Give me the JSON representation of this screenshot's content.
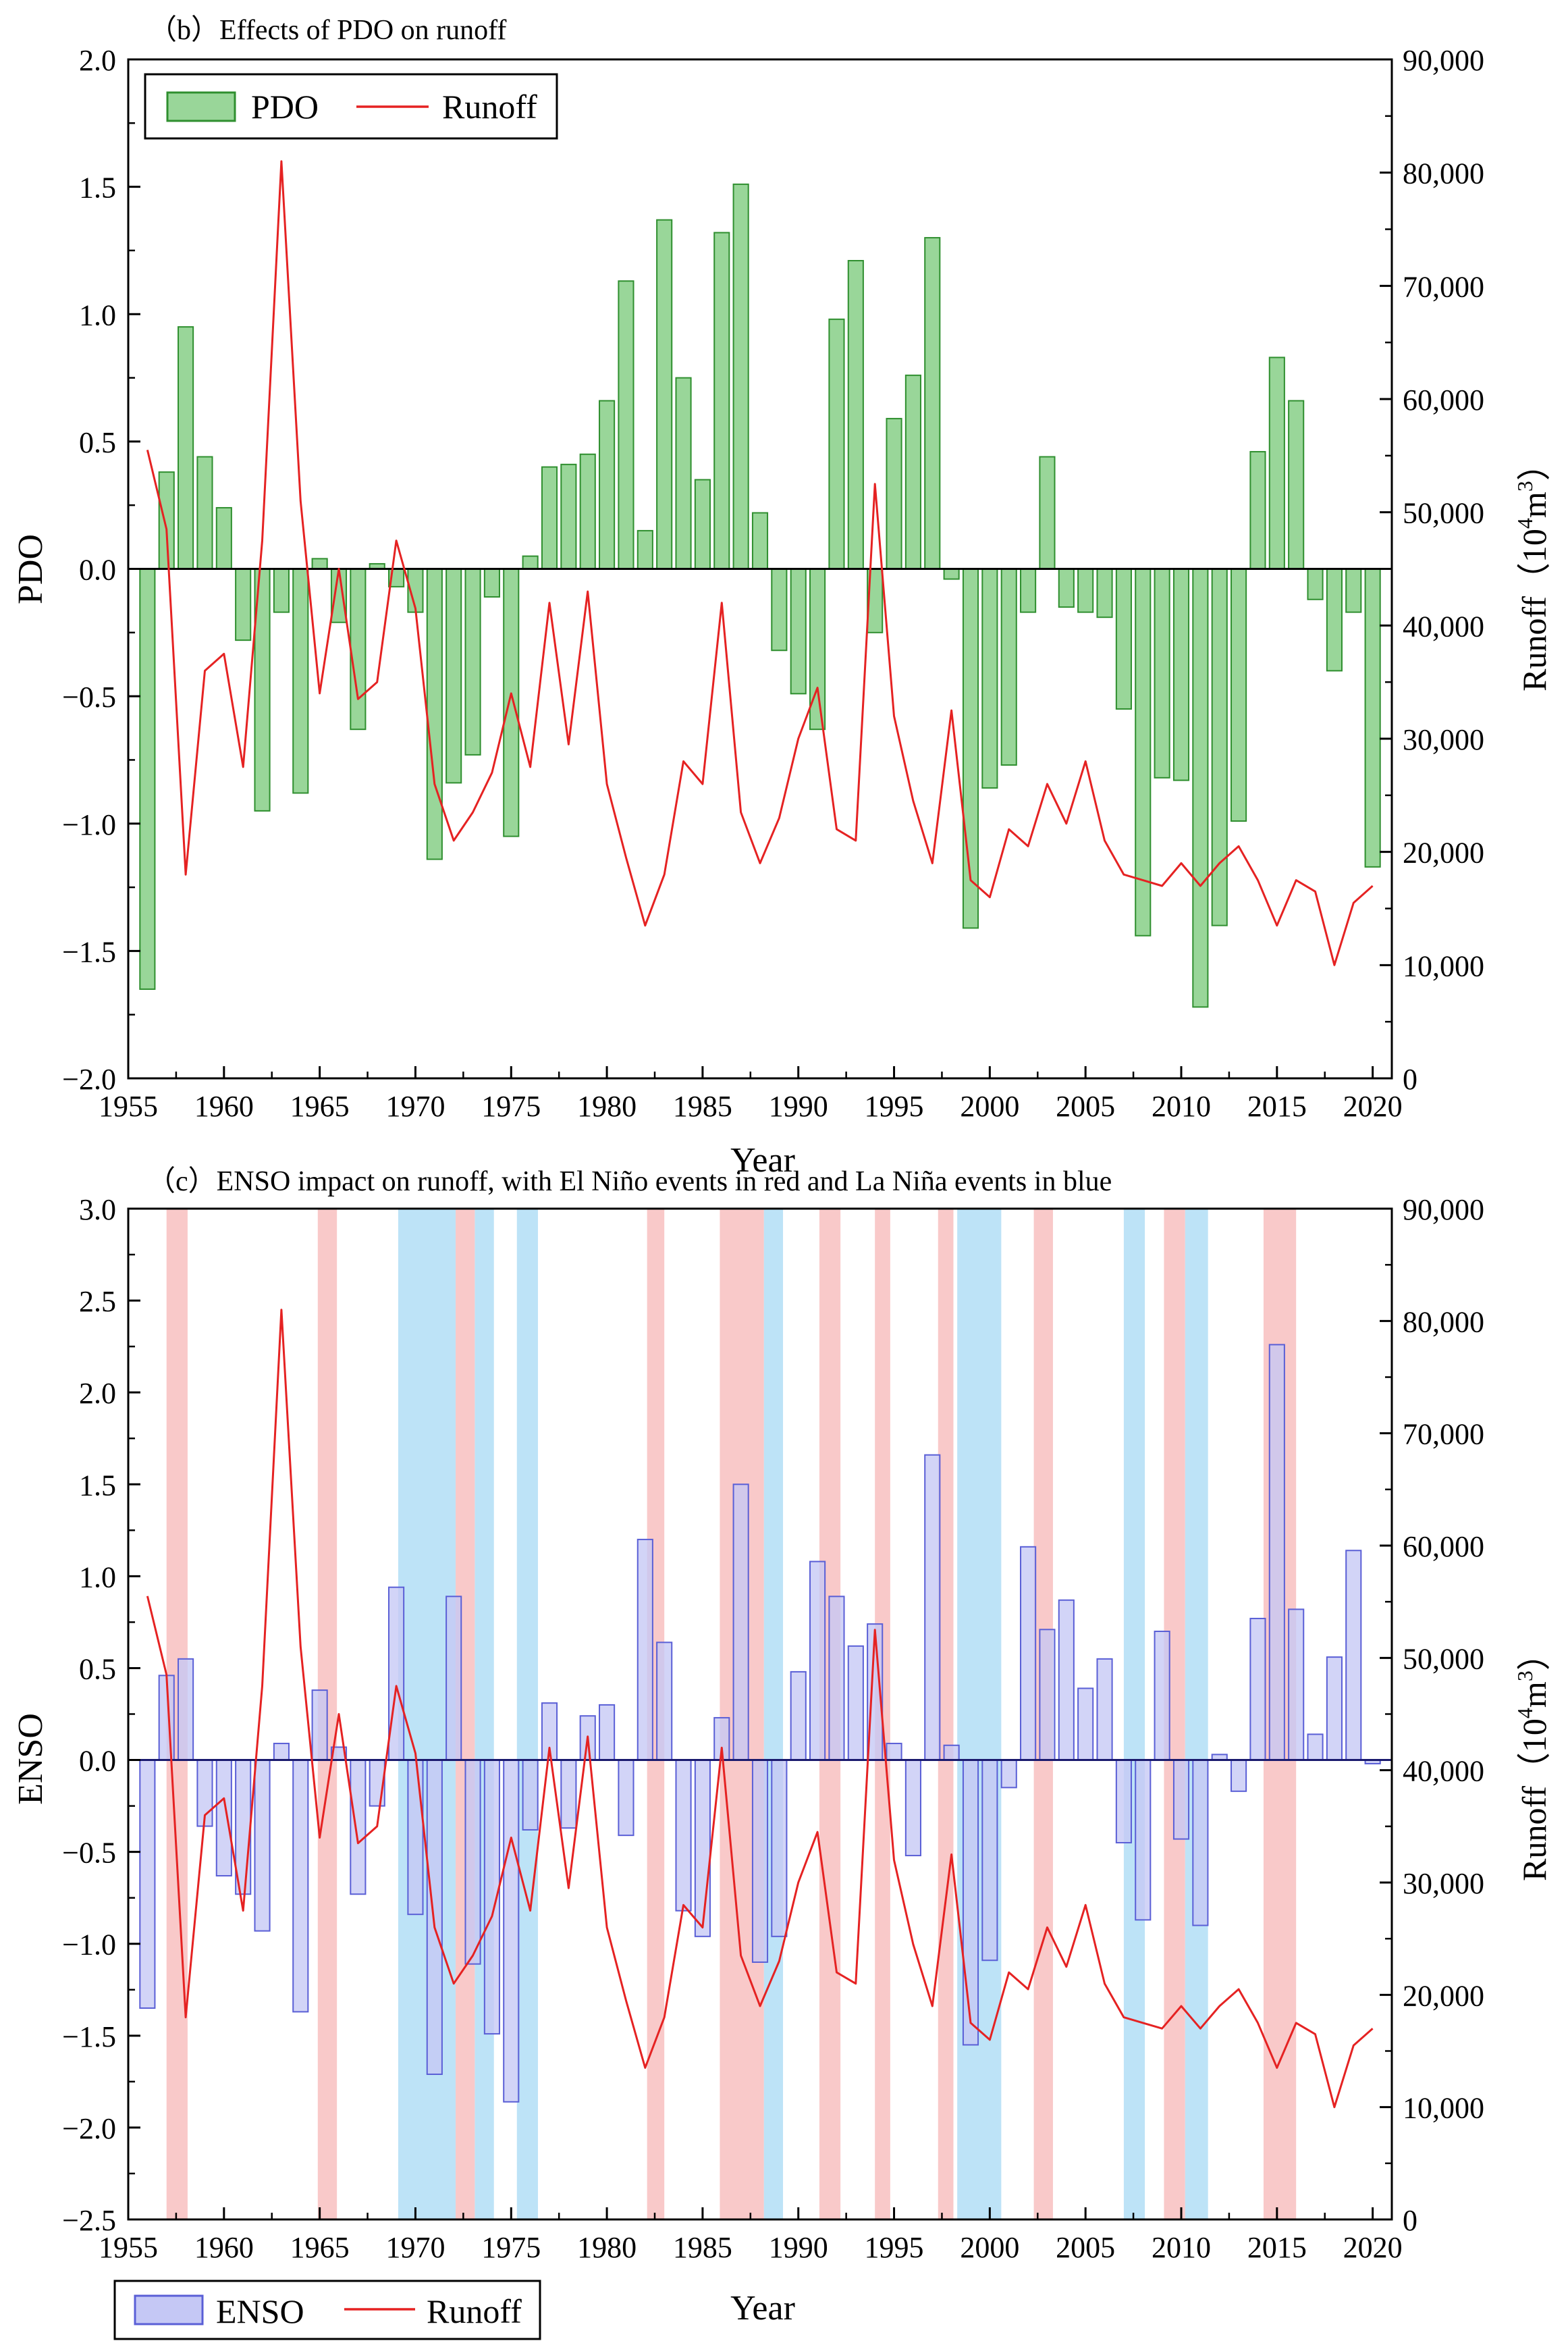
{
  "colors": {
    "pdo_fill": "#99d699",
    "pdo_stroke": "#2f8f2f",
    "enso_fill": "#c5c8f5",
    "enso_stroke": "#5a5fd6",
    "runoff": "#e52222",
    "el_nino_band": "#f9c9c9",
    "la_nina_band": "#bde3f7",
    "axis": "#000000"
  },
  "years": [
    1956,
    1957,
    1958,
    1959,
    1960,
    1961,
    1962,
    1963,
    1964,
    1965,
    1966,
    1967,
    1968,
    1969,
    1970,
    1971,
    1972,
    1973,
    1974,
    1975,
    1976,
    1977,
    1978,
    1979,
    1980,
    1981,
    1982,
    1983,
    1984,
    1985,
    1986,
    1987,
    1988,
    1989,
    1990,
    1991,
    1992,
    1993,
    1994,
    1995,
    1996,
    1997,
    1998,
    1999,
    2000,
    2001,
    2002,
    2003,
    2004,
    2005,
    2006,
    2007,
    2008,
    2009,
    2010,
    2011,
    2012,
    2013,
    2014,
    2015,
    2016,
    2017,
    2018,
    2019,
    2020
  ],
  "runoff": [
    55500,
    48500,
    18000,
    36000,
    37500,
    27500,
    47500,
    81000,
    51000,
    34000,
    45000,
    33500,
    35000,
    47500,
    41500,
    26000,
    21000,
    23500,
    27000,
    34000,
    27500,
    42000,
    29500,
    43000,
    26000,
    19500,
    13500,
    18000,
    28000,
    26000,
    42000,
    23500,
    19000,
    23000,
    30000,
    34500,
    22000,
    21000,
    52500,
    32000,
    24500,
    19000,
    32500,
    17500,
    16000,
    22000,
    20500,
    26000,
    22500,
    28000,
    21000,
    18000,
    17500,
    17000,
    19000,
    17000,
    19000,
    20500,
    17500,
    13500,
    17500,
    16500,
    10000,
    15500,
    17000
  ],
  "chart_data": [
    {
      "type": "bar",
      "title": "（b）Effects of PDO on runoff",
      "xlabel": "Year",
      "ylabel": "PDO",
      "y2label": "Runoff",
      "y2unit_base": "10",
      "y2unit_exp": "4",
      "y2unit_m": "m",
      "y2unit_m_exp": "3",
      "y2unit_open": "（",
      "y2unit_close": "）",
      "ylim": [
        -2.0,
        2.0
      ],
      "y2lim": [
        0,
        90000
      ],
      "xlim": [
        1955,
        2021
      ],
      "yticks": [
        "2.0",
        "1.5",
        "1.0",
        "0.5",
        "0.0",
        "−0.5",
        "−1.0",
        "−1.5",
        "−2.0"
      ],
      "y2ticks": [
        "90,000",
        "80,000",
        "70,000",
        "60,000",
        "50,000",
        "40,000",
        "30,000",
        "20,000",
        "10,000",
        "0"
      ],
      "xticks": [
        "1955",
        "1960",
        "1965",
        "1970",
        "1975",
        "1980",
        "1985",
        "1990",
        "1995",
        "2000",
        "2005",
        "2010",
        "2015",
        "2020"
      ],
      "legend": {
        "position": "top-left",
        "bar_label": "PDO",
        "line_label": "Runoff"
      },
      "series": [
        {
          "name": "PDO",
          "kind": "bar",
          "values": [
            -1.65,
            0.38,
            0.95,
            0.44,
            0.24,
            -0.28,
            -0.95,
            -0.17,
            -0.88,
            0.04,
            -0.21,
            -0.63,
            0.02,
            -0.07,
            -0.17,
            -1.14,
            -0.84,
            -0.73,
            -0.11,
            -1.05,
            0.05,
            0.4,
            0.41,
            0.45,
            0.66,
            1.13,
            0.15,
            1.37,
            0.75,
            0.35,
            1.32,
            1.51,
            0.22,
            -0.32,
            -0.49,
            -0.63,
            0.98,
            1.21,
            -0.25,
            0.59,
            0.76,
            1.3,
            -0.04,
            -1.41,
            -0.86,
            -0.77,
            -0.17,
            0.44,
            -0.15,
            -0.17,
            -0.19,
            -0.55,
            -1.44,
            -0.82,
            -0.83,
            -1.72,
            -1.4,
            -0.99,
            0.46,
            0.83,
            0.66,
            -0.12,
            -0.4,
            -0.17,
            -1.17
          ]
        },
        {
          "name": "Runoff",
          "kind": "line",
          "source": "runoff"
        }
      ]
    },
    {
      "type": "bar",
      "title": "（c）ENSO impact on runoff, with El Niño events in red and La Niña events in blue",
      "xlabel": "Year",
      "ylabel": "ENSO",
      "y2label": "Runoff",
      "y2unit_base": "10",
      "y2unit_exp": "4",
      "y2unit_m": "m",
      "y2unit_m_exp": "3",
      "y2unit_open": "（",
      "y2unit_close": "）",
      "ylim": [
        -2.5,
        3.0
      ],
      "y2lim": [
        0,
        90000
      ],
      "xlim": [
        1955,
        2021
      ],
      "yticks": [
        "3.0",
        "2.5",
        "2.0",
        "1.5",
        "1.0",
        "0.5",
        "0.0",
        "−0.5",
        "−1.0",
        "−1.5",
        "−2.0",
        "−2.5"
      ],
      "y2ticks": [
        "90,000",
        "80,000",
        "70,000",
        "60,000",
        "50,000",
        "40,000",
        "30,000",
        "20,000",
        "10,000",
        "0"
      ],
      "xticks": [
        "1955",
        "1960",
        "1965",
        "1970",
        "1975",
        "1980",
        "1985",
        "1990",
        "1995",
        "2000",
        "2005",
        "2010",
        "2015",
        "2020"
      ],
      "legend": {
        "position": "bottom-left",
        "bar_label": "ENSO",
        "line_label": "Runoff"
      },
      "el_nino_periods": [
        [
          1957.0,
          1958.1
        ],
        [
          1964.9,
          1965.9
        ],
        [
          1972.1,
          1973.1
        ],
        [
          1982.1,
          1983.0
        ],
        [
          1985.9,
          1988.2
        ],
        [
          1991.1,
          1992.2
        ],
        [
          1994.0,
          1994.8
        ],
        [
          1997.3,
          1998.1
        ],
        [
          2002.3,
          2003.3
        ],
        [
          2009.1,
          2010.2
        ],
        [
          2014.3,
          2016.0
        ]
      ],
      "la_nina_periods": [
        [
          1969.1,
          1972.1
        ],
        [
          1973.1,
          1974.1
        ],
        [
          1975.3,
          1976.4
        ],
        [
          1988.2,
          1989.2
        ],
        [
          1998.3,
          2000.6
        ],
        [
          2007.0,
          2008.1
        ],
        [
          2010.2,
          2011.4
        ]
      ],
      "series": [
        {
          "name": "ENSO",
          "kind": "bar",
          "values": [
            -1.35,
            0.46,
            0.55,
            -0.36,
            -0.63,
            -0.73,
            -0.93,
            0.09,
            -1.37,
            0.38,
            0.07,
            -0.73,
            -0.25,
            0.94,
            -0.84,
            -1.71,
            0.89,
            -1.11,
            -1.49,
            -1.86,
            -0.38,
            0.31,
            -0.37,
            0.24,
            0.3,
            -0.41,
            1.2,
            0.64,
            -0.82,
            -0.96,
            0.23,
            1.5,
            -1.1,
            -0.96,
            0.48,
            1.08,
            0.89,
            0.62,
            0.74,
            0.09,
            -0.52,
            1.66,
            0.08,
            -1.55,
            -1.09,
            -0.15,
            1.16,
            0.71,
            0.87,
            0.39,
            0.55,
            -0.45,
            -0.87,
            0.7,
            -0.43,
            -0.9,
            0.03,
            -0.17,
            0.77,
            2.26,
            0.82,
            0.14,
            0.56,
            1.14,
            -0.02
          ]
        },
        {
          "name": "Runoff",
          "kind": "line",
          "source": "runoff"
        }
      ]
    }
  ]
}
